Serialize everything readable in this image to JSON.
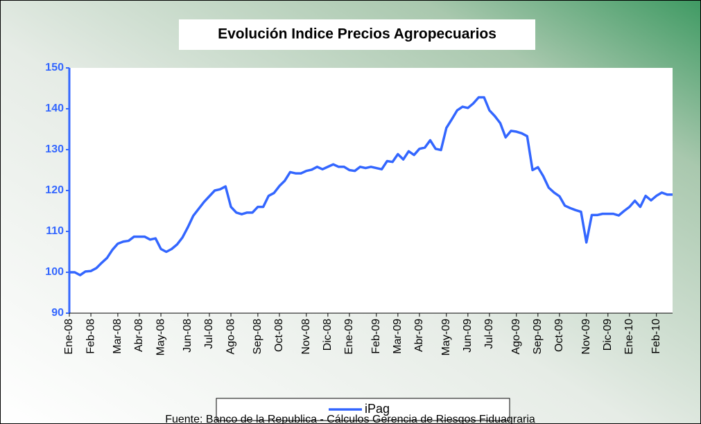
{
  "chart_data": {
    "type": "line",
    "title": "Evolución Indice Precios Agropecuarios",
    "source": "Fuente: Banco de la Republica - Cálculos Gerencia de Riesgos Fiduagraria",
    "categories": [
      "Ene-08",
      null,
      null,
      null,
      "Feb-08",
      null,
      null,
      null,
      null,
      "Mar-08",
      null,
      null,
      null,
      "Abr-08",
      null,
      null,
      null,
      "May-08",
      null,
      null,
      null,
      null,
      "Jun-08",
      null,
      null,
      null,
      "Jul-08",
      null,
      null,
      null,
      "Ago-08",
      null,
      null,
      null,
      null,
      "Sep-08",
      null,
      null,
      null,
      "Oct-08",
      null,
      null,
      null,
      null,
      "Nov-08",
      null,
      null,
      null,
      "Dic-08",
      null,
      null,
      null,
      "Ene-09",
      null,
      null,
      null,
      null,
      "Feb-09",
      null,
      null,
      null,
      "Mar-09",
      null,
      null,
      null,
      "Abr-09",
      null,
      null,
      null,
      null,
      "May-09",
      null,
      null,
      null,
      "Jun-09",
      null,
      null,
      null,
      "Jul-09",
      null,
      null,
      null,
      null,
      "Ago-09",
      null,
      null,
      null,
      "Sep-09",
      null,
      null,
      null,
      "Oct-09",
      null,
      null,
      null,
      null,
      "Nov-09",
      null,
      null,
      null,
      "Dic-09",
      null,
      null,
      null,
      "Ene-10",
      null,
      null,
      null,
      null,
      "Feb-10",
      null,
      null,
      null
    ],
    "series": [
      {
        "name": "iPag",
        "color": "#3366ff",
        "values": [
          100,
          100,
          99.3,
          100.2,
          100.3,
          101,
          102.3,
          103.5,
          105.5,
          107,
          107.5,
          107.7,
          108.7,
          108.7,
          108.7,
          108,
          108.3,
          105.7,
          105,
          105.7,
          106.8,
          108.5,
          111,
          113.8,
          115.5,
          117.2,
          118.6,
          120,
          120.3,
          121,
          116,
          114.6,
          114.2,
          114.6,
          114.6,
          116,
          116,
          118.7,
          119.4,
          121.1,
          122.4,
          124.5,
          124.2,
          124.2,
          124.8,
          125.1,
          125.8,
          125.2,
          125.8,
          126.4,
          125.8,
          125.8,
          125,
          124.8,
          125.8,
          125.5,
          125.8,
          125.5,
          125.2,
          127.2,
          127,
          128.9,
          127.6,
          129.6,
          128.7,
          130.2,
          130.5,
          132.3,
          130.2,
          129.9,
          135.3,
          137.4,
          139.6,
          140.5,
          140.2,
          141.3,
          142.8,
          142.8,
          139.6,
          138.2,
          136.5,
          133,
          134.6,
          134.4,
          134,
          133.3,
          125,
          125.7,
          123.5,
          120.7,
          119.5,
          118.6,
          116.3,
          115.7,
          115.2,
          114.8,
          107.3,
          114,
          114,
          114.3,
          114.3,
          114.3,
          113.9,
          115,
          116,
          117.5,
          116,
          118.7,
          117.6,
          118.7,
          119.5,
          119,
          119
        ]
      }
    ],
    "ylim": [
      90,
      150
    ],
    "yticks": [
      90,
      100,
      110,
      120,
      130,
      140,
      150
    ],
    "grid": false,
    "legend": "bottom"
  }
}
